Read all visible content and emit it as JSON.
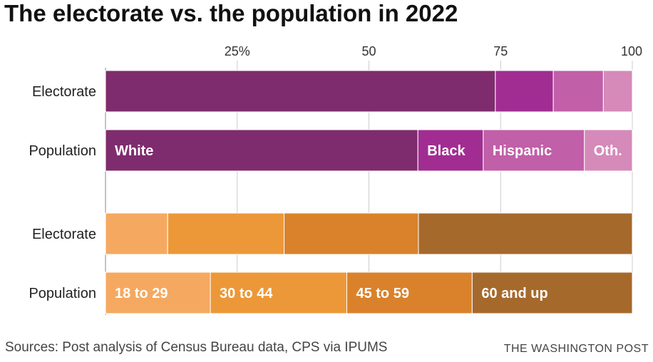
{
  "title": "The electorate vs. the population in 2022",
  "source": "Sources: Post analysis of Census Bureau data, CPS via IPUMS",
  "credit": "THE WASHINGTON POST",
  "chart_data": [
    {
      "type": "bar",
      "stacked": true,
      "orientation": "horizontal",
      "categories": [
        "Electorate",
        "Population"
      ],
      "xlim": [
        0,
        100
      ],
      "x_ticks": [
        "25%",
        "50",
        "75",
        "100"
      ],
      "x_tick_values": [
        25,
        50,
        75,
        100
      ],
      "grid": true,
      "series": [
        {
          "name": "White",
          "label": "White",
          "color": "#7f2c6e",
          "values": [
            74,
            59.3
          ]
        },
        {
          "name": "Black",
          "label": "Black",
          "color": "#a22d92",
          "values": [
            11,
            12.4
          ]
        },
        {
          "name": "Hispanic",
          "label": "Hispanic",
          "color": "#c15fa8",
          "values": [
            9.5,
            19.2
          ]
        },
        {
          "name": "Other",
          "label": "Oth.",
          "color": "#d58ab9",
          "values": [
            5.5,
            9.1
          ]
        }
      ]
    },
    {
      "type": "bar",
      "stacked": true,
      "orientation": "horizontal",
      "categories": [
        "Electorate",
        "Population"
      ],
      "xlim": [
        0,
        100
      ],
      "grid": true,
      "series": [
        {
          "name": "18 to 29",
          "label": "18 to 29",
          "color": "#f5a960",
          "values": [
            11.8,
            19.9
          ]
        },
        {
          "name": "30 to 44",
          "label": "30 to 44",
          "color": "#ec9838",
          "values": [
            22.1,
            25.9
          ]
        },
        {
          "name": "45 to 59",
          "label": "45 to 59",
          "color": "#d9822b",
          "values": [
            25.5,
            23.8
          ]
        },
        {
          "name": "60 and up",
          "label": "60 and up",
          "color": "#a6692c",
          "values": [
            40.6,
            30.4
          ]
        }
      ]
    }
  ]
}
